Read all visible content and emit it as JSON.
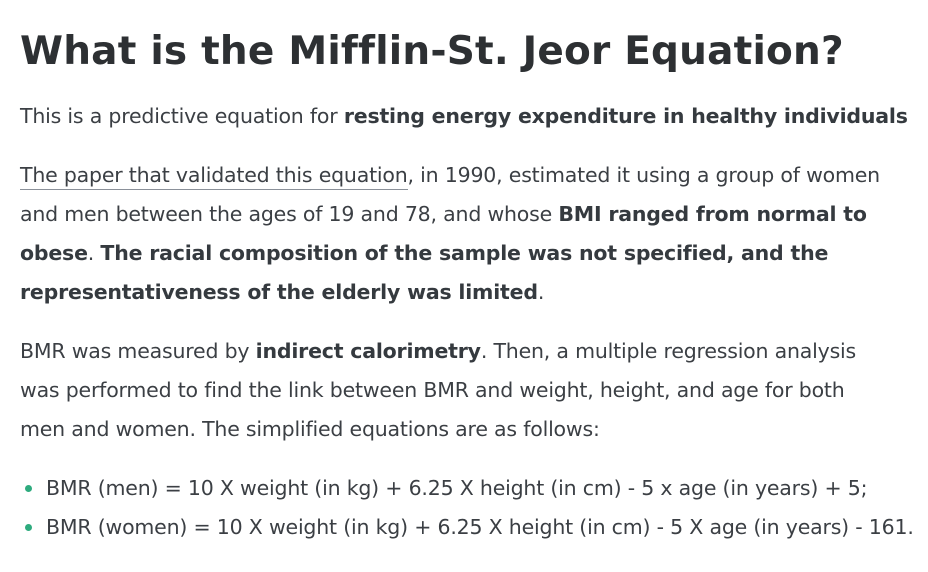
{
  "title": "What is the Mifflin-St. Jeor Equation?",
  "p1": {
    "text": "This is a predictive equation for ",
    "bold": "resting energy expenditure in healthy individuals"
  },
  "p2": {
    "link": "The paper that validated this equation",
    "t1": ", in 1990, estimated it using a group of women",
    "t2": "and men between the ages of 19 and 78, and whose ",
    "b1a": "BMI ranged from normal to",
    "b1b": "obese",
    "t3": ". ",
    "b2a": "The racial composition of the sample was not specified, and the",
    "b2b": "representativeness of the elderly was limited",
    "t4": "."
  },
  "p3": {
    "t1": "BMR was measured by ",
    "b1": "indirect calorimetry",
    "t2": ". Then, a multiple regression analysis",
    "t3": "was performed to find the link between BMR and weight, height, and age for both",
    "t4": "men and women. The simplified equations are as follows:"
  },
  "list": {
    "bullet_color": "#2eab7e",
    "items": [
      "BMR (men) = 10 X weight (in kg) + 6.25 X height (in cm) - 5 x age (in years) + 5;",
      "BMR (women) = 10 X weight (in kg) + 6.25 X height (in cm) - 5 X age (in years) - 161."
    ]
  }
}
